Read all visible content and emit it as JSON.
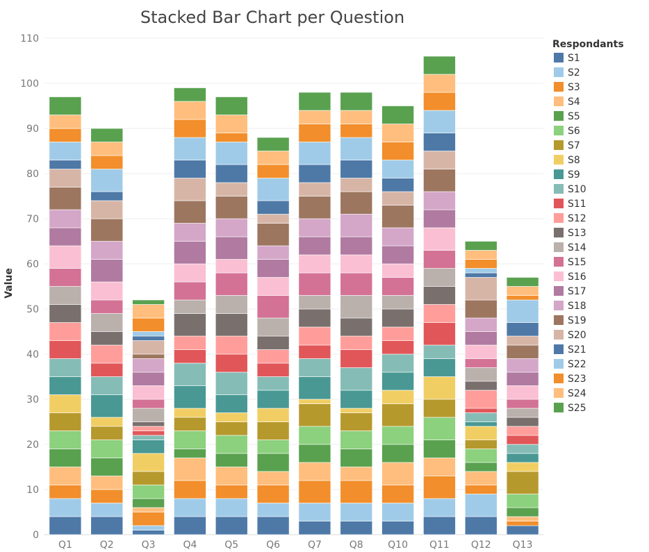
{
  "chart_data": {
    "type": "bar",
    "stacked": true,
    "title": "Stacked Bar Chart per Question",
    "xlabel": "",
    "ylabel": "Value",
    "ylim": [
      0,
      110
    ],
    "yticks": [
      0,
      10,
      20,
      30,
      40,
      50,
      60,
      70,
      80,
      90,
      100,
      110
    ],
    "grid": true,
    "legend_title": "Respondants",
    "legend_position": "right",
    "categories": [
      "Q1",
      "Q2",
      "Q3",
      "Q4",
      "Q5",
      "Q6",
      "Q7",
      "Q8",
      "Q10",
      "Q11",
      "Q12",
      "Q13"
    ],
    "series": [
      {
        "name": "S1",
        "color": "#4e79a7",
        "values": [
          4,
          4,
          1,
          4,
          4,
          4,
          3,
          3,
          3,
          4,
          4,
          2
        ]
      },
      {
        "name": "S2",
        "color": "#a0cbe8",
        "values": [
          4,
          3,
          1,
          4,
          4,
          3,
          4,
          4,
          4,
          4,
          5,
          0
        ]
      },
      {
        "name": "S3",
        "color": "#f28e2b",
        "values": [
          3,
          3,
          3,
          4,
          3,
          4,
          5,
          5,
          4,
          5,
          2,
          1
        ]
      },
      {
        "name": "S4",
        "color": "#ffbe7d",
        "values": [
          4,
          3,
          1,
          5,
          4,
          3,
          4,
          3,
          5,
          4,
          3,
          1
        ]
      },
      {
        "name": "S5",
        "color": "#59a14f",
        "values": [
          4,
          4,
          2,
          2,
          3,
          4,
          4,
          4,
          4,
          4,
          2,
          2
        ]
      },
      {
        "name": "S6",
        "color": "#8cd17d",
        "values": [
          4,
          4,
          3,
          4,
          4,
          3,
          4,
          4,
          4,
          5,
          3,
          3
        ]
      },
      {
        "name": "S7",
        "color": "#b6992d",
        "values": [
          4,
          3,
          3,
          3,
          3,
          4,
          5,
          4,
          5,
          4,
          2,
          5
        ]
      },
      {
        "name": "S8",
        "color": "#f1ce63",
        "values": [
          4,
          2,
          4,
          2,
          2,
          3,
          1,
          1,
          3,
          5,
          3,
          2
        ]
      },
      {
        "name": "S9",
        "color": "#499894",
        "values": [
          4,
          5,
          3,
          5,
          4,
          4,
          5,
          4,
          4,
          4,
          1,
          2
        ]
      },
      {
        "name": "S10",
        "color": "#86bcb6",
        "values": [
          4,
          4,
          1,
          5,
          5,
          3,
          4,
          5,
          4,
          3,
          2,
          2
        ]
      },
      {
        "name": "S11",
        "color": "#e15759",
        "values": [
          4,
          3,
          1,
          3,
          4,
          3,
          3,
          4,
          3,
          5,
          1,
          2
        ]
      },
      {
        "name": "S12",
        "color": "#ff9d9a",
        "values": [
          4,
          4,
          1,
          3,
          4,
          3,
          4,
          3,
          3,
          4,
          4,
          2
        ]
      },
      {
        "name": "S13",
        "color": "#79706e",
        "values": [
          4,
          3,
          1,
          5,
          5,
          3,
          4,
          4,
          4,
          4,
          2,
          2
        ]
      },
      {
        "name": "S14",
        "color": "#bab0ac",
        "values": [
          4,
          4,
          3,
          3,
          4,
          4,
          3,
          5,
          3,
          4,
          3,
          2
        ]
      },
      {
        "name": "S15",
        "color": "#d37295",
        "values": [
          4,
          3,
          2,
          4,
          5,
          5,
          5,
          5,
          4,
          4,
          2,
          2
        ]
      },
      {
        "name": "S16",
        "color": "#fabfd2",
        "values": [
          5,
          4,
          3,
          4,
          3,
          4,
          4,
          4,
          3,
          5,
          3,
          3
        ]
      },
      {
        "name": "S17",
        "color": "#b07aa1",
        "values": [
          4,
          5,
          3,
          5,
          5,
          4,
          4,
          4,
          4,
          4,
          3,
          3
        ]
      },
      {
        "name": "S18",
        "color": "#d4a6c8",
        "values": [
          4,
          4,
          3,
          4,
          4,
          3,
          4,
          5,
          4,
          4,
          3,
          3
        ]
      },
      {
        "name": "S19",
        "color": "#9d7660",
        "values": [
          5,
          5,
          1,
          5,
          5,
          5,
          5,
          5,
          5,
          5,
          4,
          3
        ]
      },
      {
        "name": "S20",
        "color": "#d7b5a6",
        "values": [
          4,
          4,
          3,
          5,
          3,
          2,
          3,
          3,
          3,
          4,
          5,
          2
        ]
      },
      {
        "name": "S21",
        "color": "#4e79a7",
        "values": [
          2,
          2,
          1,
          4,
          4,
          3,
          4,
          4,
          3,
          4,
          1,
          3
        ]
      },
      {
        "name": "S22",
        "color": "#a0cbe8",
        "values": [
          4,
          5,
          1,
          5,
          5,
          5,
          5,
          5,
          4,
          5,
          1,
          5
        ]
      },
      {
        "name": "S23",
        "color": "#f28e2b",
        "values": [
          3,
          3,
          3,
          4,
          2,
          3,
          4,
          3,
          4,
          4,
          2,
          1
        ]
      },
      {
        "name": "S24",
        "color": "#ffbe7d",
        "values": [
          3,
          3,
          3,
          4,
          4,
          3,
          3,
          3,
          4,
          4,
          2,
          2
        ]
      },
      {
        "name": "S25",
        "color": "#59a14f",
        "values": [
          4,
          3,
          1,
          3,
          4,
          3,
          4,
          4,
          4,
          4,
          2,
          2
        ]
      }
    ]
  }
}
